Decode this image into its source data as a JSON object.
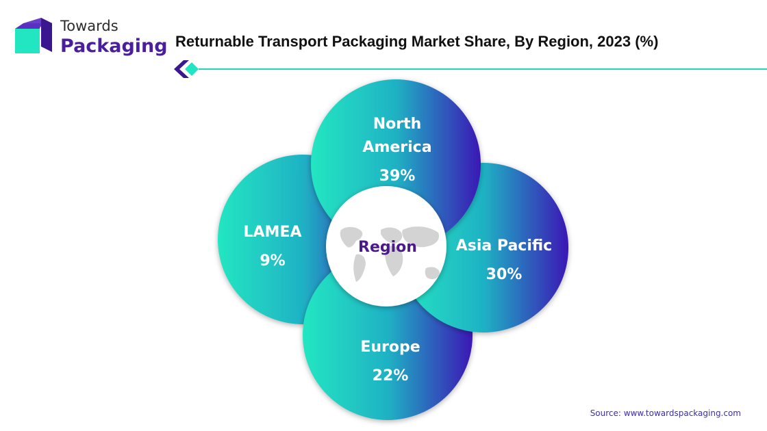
{
  "brand": {
    "line1": "Towards",
    "line2": "Packaging"
  },
  "title": "Returnable Transport Packaging Market Share, By Region, 2023 (%)",
  "center_label": "Region",
  "source": "Source: www.towardspackaging.com",
  "colors": {
    "teal": "#22e6c2",
    "purple": "#3b17b5",
    "brand_purple": "#4b1e9e",
    "center_text": "#4a1a8c",
    "source_text": "#3b2db0"
  },
  "chart_data": {
    "type": "pie",
    "title": "Returnable Transport Packaging Market Share, By Region, 2023 (%)",
    "categories": [
      "North America",
      "Asia Pacific",
      "Europe",
      "LAMEA"
    ],
    "values": [
      39,
      30,
      22,
      9
    ],
    "unit": "%",
    "display_labels": [
      [
        "North",
        "America"
      ],
      [
        "Asia Pacific"
      ],
      [
        "Europe"
      ],
      [
        "LAMEA"
      ]
    ]
  }
}
